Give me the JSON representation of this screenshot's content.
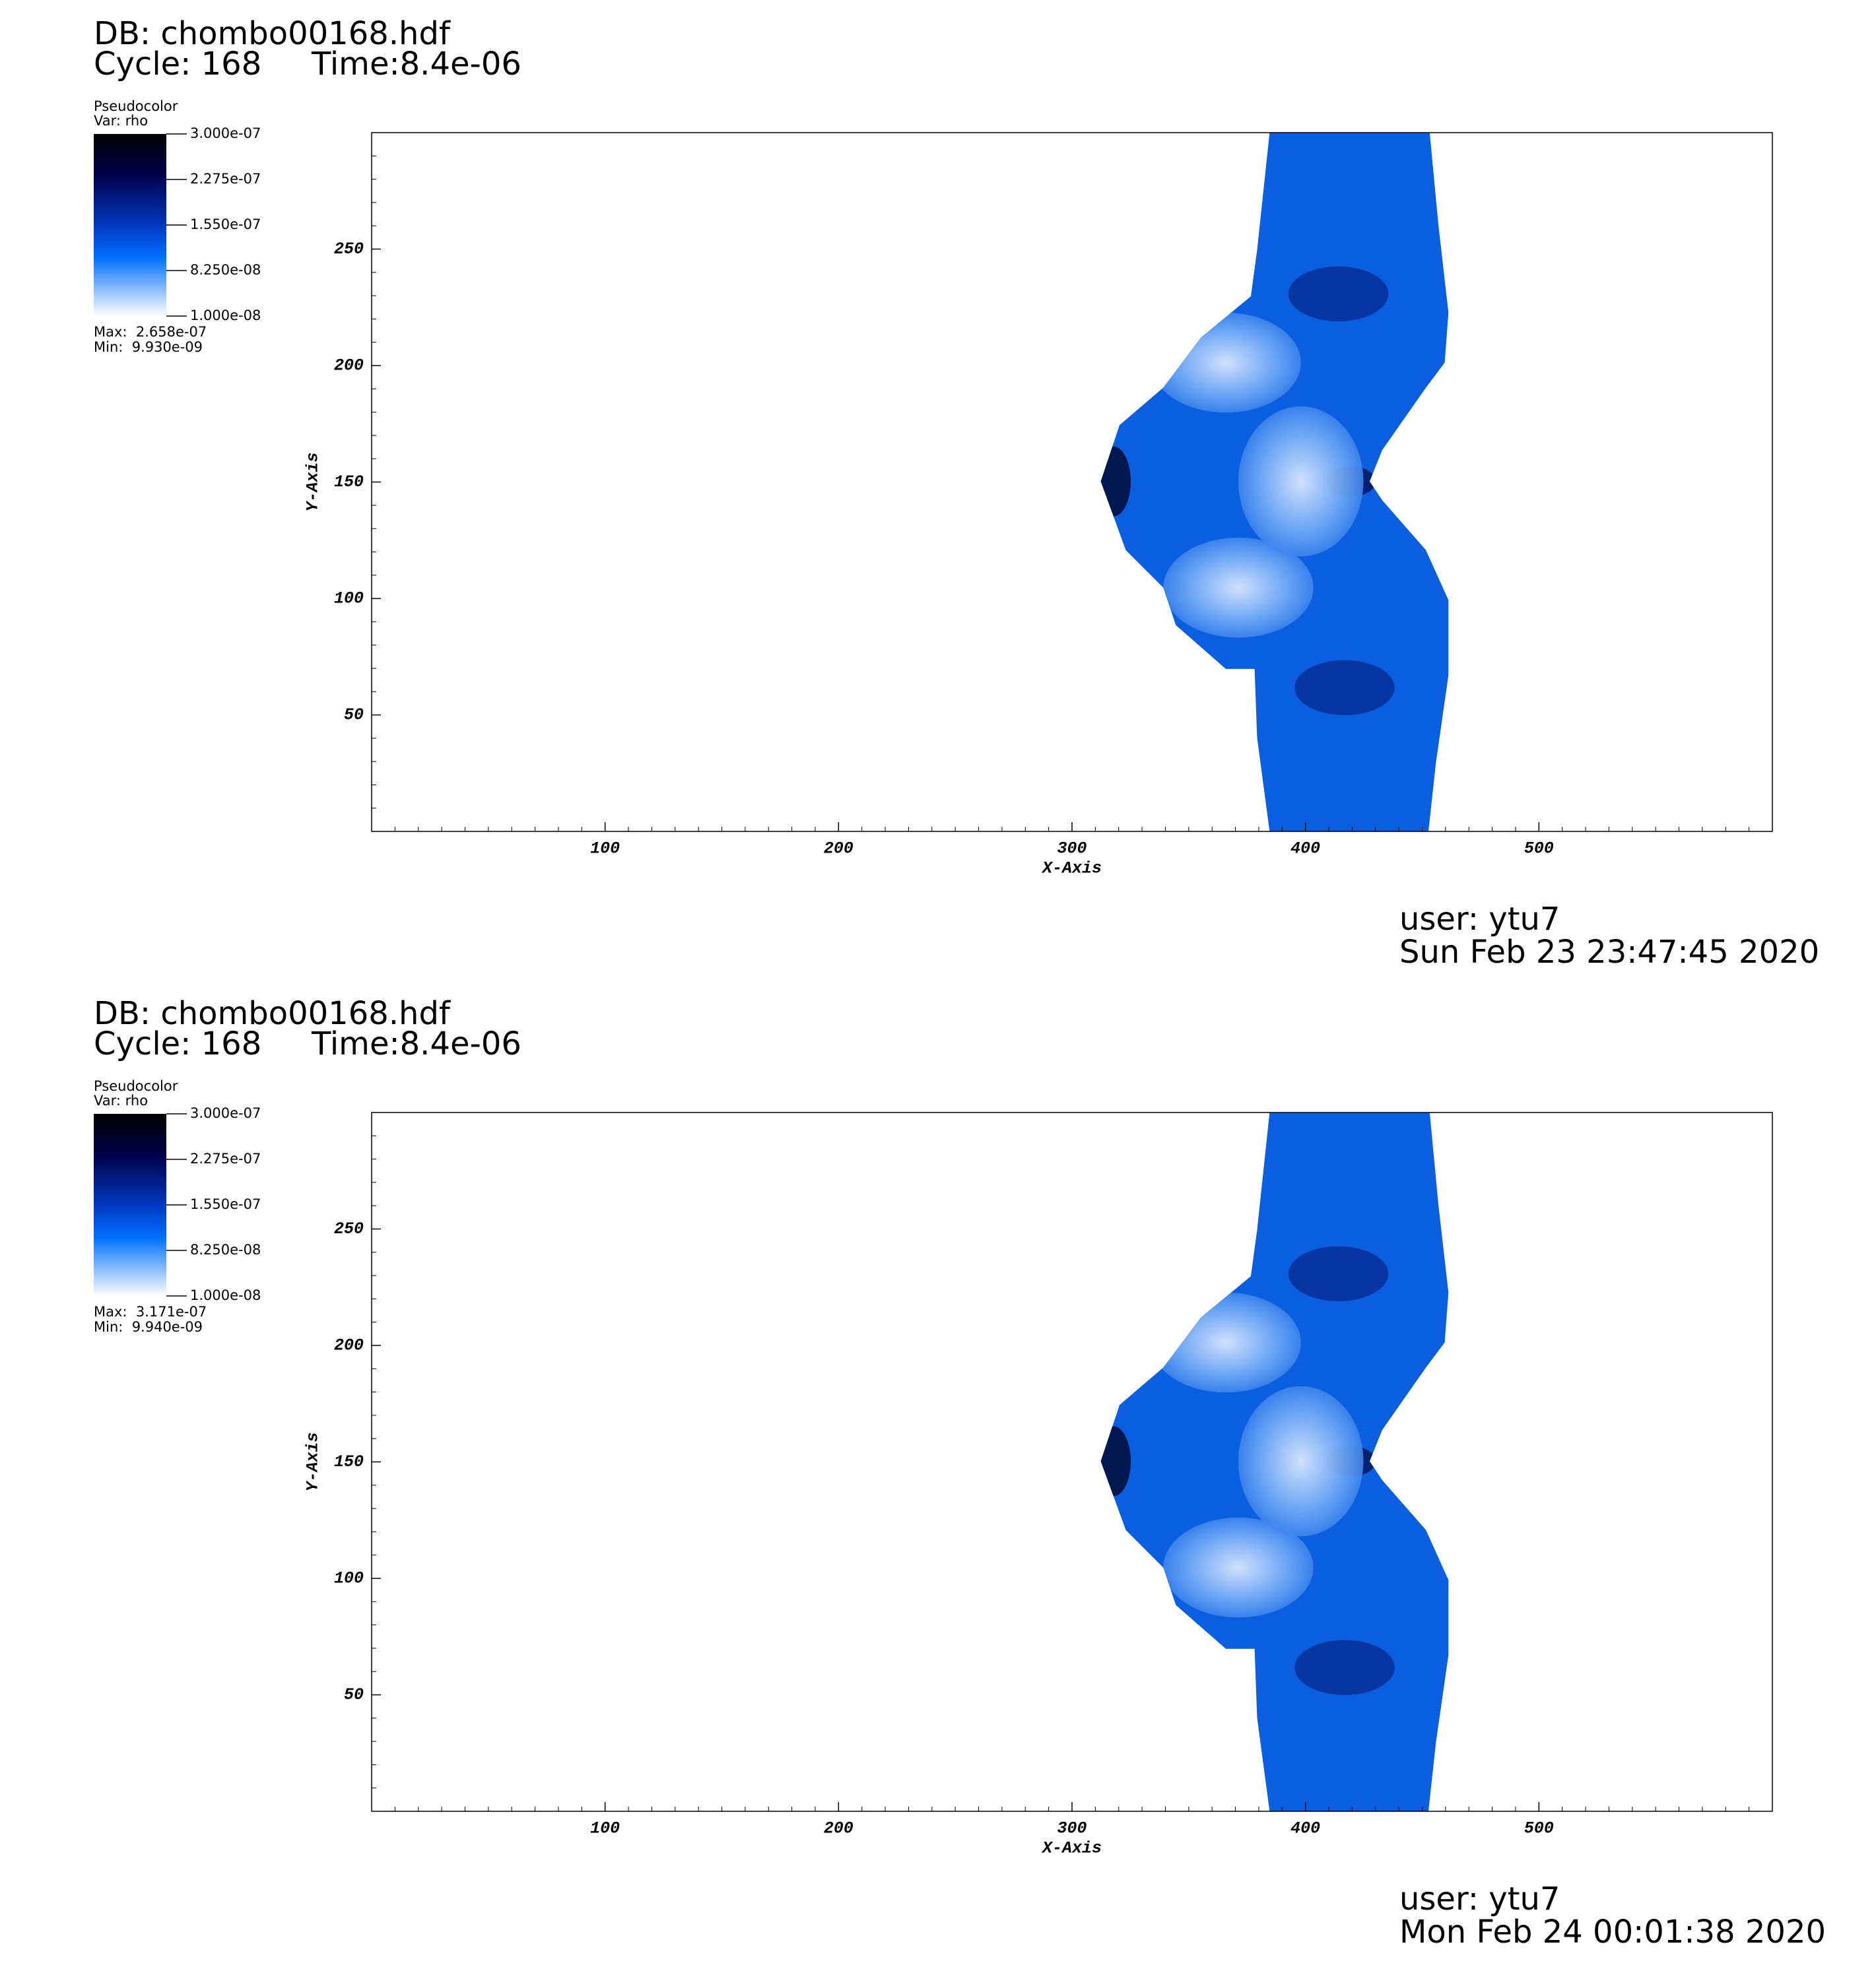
{
  "chart_data": [
    {
      "type": "pseudocolor",
      "db": "DB: chombo00168.hdf",
      "cycle": "Cycle: 168",
      "time": "Time:8.4e-06",
      "legend_title": "Pseudocolor",
      "variable": "Var: rho",
      "clim": [
        1e-08,
        3e-07
      ],
      "colorbar_ticks": [
        {
          "value": 3e-07,
          "label": "3.000e-07"
        },
        {
          "value": 2.275e-07,
          "label": "2.275e-07"
        },
        {
          "value": 1.55e-07,
          "label": "1.550e-07"
        },
        {
          "value": 8.25e-08,
          "label": "8.250e-08"
        },
        {
          "value": 1e-08,
          "label": "1.000e-08"
        }
      ],
      "max": "Max:  2.658e-07",
      "min": "Min:  9.930e-09",
      "xlabel": "X-Axis",
      "ylabel": "Y-Axis",
      "xlim": [
        0,
        600
      ],
      "ylim": [
        0,
        300
      ],
      "xticks": [
        100,
        200,
        300,
        400,
        500
      ],
      "yticks": [
        50,
        100,
        150,
        200,
        250
      ],
      "user": "user: ytu7",
      "date": "Sun Feb 23 23:47:45 2020"
    },
    {
      "type": "pseudocolor",
      "db": "DB: chombo00168.hdf",
      "cycle": "Cycle: 168",
      "time": "Time:8.4e-06",
      "legend_title": "Pseudocolor",
      "variable": "Var: rho",
      "clim": [
        1e-08,
        3e-07
      ],
      "colorbar_ticks": [
        {
          "value": 3e-07,
          "label": "3.000e-07"
        },
        {
          "value": 2.275e-07,
          "label": "2.275e-07"
        },
        {
          "value": 1.55e-07,
          "label": "1.550e-07"
        },
        {
          "value": 8.25e-08,
          "label": "8.250e-08"
        },
        {
          "value": 1e-08,
          "label": "1.000e-08"
        }
      ],
      "max": "Max:  3.171e-07",
      "min": "Min:  9.940e-09",
      "xlabel": "X-Axis",
      "ylabel": "Y-Axis",
      "xlim": [
        0,
        600
      ],
      "ylim": [
        0,
        300
      ],
      "xticks": [
        100,
        200,
        300,
        400,
        500
      ],
      "yticks": [
        50,
        100,
        150,
        200,
        250
      ],
      "user": "user: ytu7",
      "date": "Mon Feb 24 00:01:38 2020"
    }
  ]
}
